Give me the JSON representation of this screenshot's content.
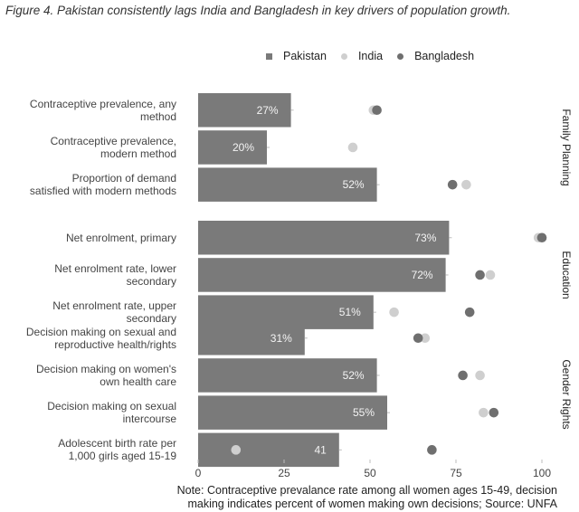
{
  "title": "Figure 4. Pakistan consistently lags India and Bangladesh in key drivers of population growth.",
  "legend": [
    {
      "name": "Pakistan",
      "color": "#7a7a7a",
      "shape": "square"
    },
    {
      "name": "India",
      "color": "#cfcfcf",
      "shape": "dot"
    },
    {
      "name": "Bangladesh",
      "color": "#6f6f6f",
      "shape": "dot"
    }
  ],
  "note_lines": [
    "Note: Contraceptive prevalance rate among all women ages 15-49, decision",
    "making indicates percent of women making own decisions; Source: UNFA"
  ],
  "chart_data": {
    "type": "bar",
    "orientation": "horizontal",
    "xlim": [
      0,
      100
    ],
    "xticks": [
      "0",
      "25",
      "50",
      "75",
      "100"
    ],
    "grid": false,
    "legend_position": "top",
    "facets": [
      {
        "name": "Family Planning",
        "rows": [
          {
            "label": [
              "Contraceptive prevalence, any",
              "method"
            ],
            "pakistan": 27,
            "value_label": "27%",
            "india": 51,
            "bangladesh": 52
          },
          {
            "label": [
              "Contraceptive prevalence,",
              "modern method"
            ],
            "pakistan": 20,
            "value_label": "20%",
            "india": 45,
            "bangladesh": null
          },
          {
            "label": [
              "Proportion of demand",
              "satisfied with modern methods"
            ],
            "pakistan": 52,
            "value_label": "52%",
            "india": 78,
            "bangladesh": 74
          }
        ]
      },
      {
        "name": "Education",
        "rows": [
          {
            "label": [
              "Net enrolment, primary"
            ],
            "pakistan": 73,
            "value_label": "73%",
            "india": 99,
            "bangladesh": 100
          },
          {
            "label": [
              "Net enrolment rate, lower",
              "secondary"
            ],
            "pakistan": 72,
            "value_label": "72%",
            "india": 85,
            "bangladesh": 82
          },
          {
            "label": [
              "Net enrolment rate, upper",
              "secondary"
            ],
            "pakistan": 51,
            "value_label": "51%",
            "india": 57,
            "bangladesh": 79
          }
        ]
      },
      {
        "name": "Gender Rights",
        "rows": [
          {
            "label": [
              "Decision making on sexual and",
              "reproductive health/rights"
            ],
            "pakistan": 31,
            "value_label": "31%",
            "india": 66,
            "bangladesh": 64
          },
          {
            "label": [
              "Decision making on women's",
              "own health care"
            ],
            "pakistan": 52,
            "value_label": "52%",
            "india": 82,
            "bangladesh": 77
          },
          {
            "label": [
              "Decision making on sexual",
              "intercourse"
            ],
            "pakistan": 55,
            "value_label": "55%",
            "india": 83,
            "bangladesh": 86
          },
          {
            "label": [
              "Adolescent birth rate per",
              "1,000 girls aged 15-19"
            ],
            "pakistan": 41,
            "value_label": "41",
            "india": 11,
            "bangladesh": 68
          }
        ]
      }
    ]
  }
}
